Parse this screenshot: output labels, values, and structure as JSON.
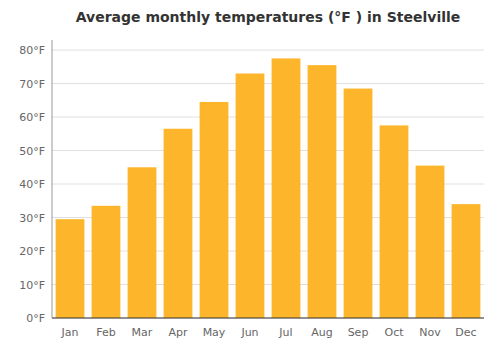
{
  "chart_data": {
    "type": "bar",
    "title": "Average monthly temperatures (°F ) in Steelville",
    "categories": [
      "Jan",
      "Feb",
      "Mar",
      "Apr",
      "May",
      "Jun",
      "Jul",
      "Aug",
      "Sep",
      "Oct",
      "Nov",
      "Dec"
    ],
    "values": [
      29.5,
      33.5,
      45.0,
      56.5,
      64.5,
      73.0,
      77.5,
      75.5,
      68.5,
      57.5,
      45.5,
      34.0
    ],
    "color": "#FDB62B",
    "ylim": [
      0,
      83
    ],
    "yticks": [
      {
        "value": 0,
        "label": "0°F"
      },
      {
        "value": 10,
        "label": "10°F"
      },
      {
        "value": 20,
        "label": "20°F"
      },
      {
        "value": 30,
        "label": "30°F"
      },
      {
        "value": 40,
        "label": "40°F"
      },
      {
        "value": 50,
        "label": "50°F"
      },
      {
        "value": 60,
        "label": "60°F"
      },
      {
        "value": 70,
        "label": "70°F"
      },
      {
        "value": 80,
        "label": "80°F"
      }
    ],
    "grid": true
  }
}
